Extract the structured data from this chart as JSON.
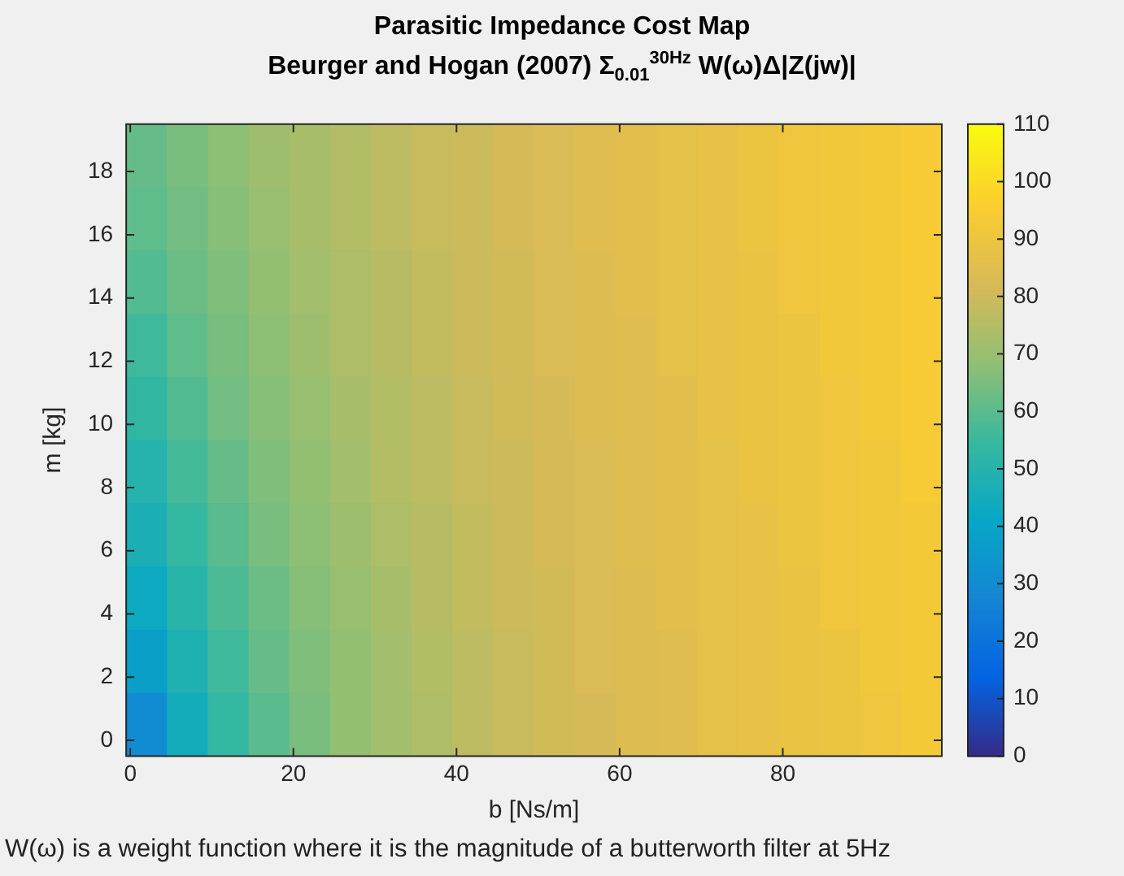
{
  "chart_data": {
    "type": "heatmap",
    "title": "Parasitic Impedance Cost Map",
    "subtitle": "Beurger and Hogan (2007) Σ$_{0.01}$$^{30Hz}$ W(ω)Δ|Z(jw)|",
    "xlabel": "b [Ns/m]",
    "ylabel": "m [kg]",
    "x": [
      2,
      7,
      12,
      17,
      22,
      27,
      32,
      37,
      42,
      47,
      52,
      57,
      62,
      67,
      72,
      77,
      82,
      87,
      92,
      97
    ],
    "y": [
      18.5,
      16.5,
      14.5,
      12.5,
      10.5,
      8.5,
      6.5,
      4.5,
      2.5,
      0.5
    ],
    "cells": [
      [
        62,
        65,
        68,
        71,
        73,
        75,
        77,
        79,
        80,
        82,
        83,
        85,
        86,
        87,
        88,
        90,
        91,
        92,
        93,
        94
      ],
      [
        61,
        64,
        67,
        70,
        73,
        75,
        77,
        79,
        80,
        82,
        83,
        85,
        86,
        87,
        88,
        90,
        91,
        92,
        93,
        94
      ],
      [
        59,
        63,
        66,
        69,
        72,
        74,
        76,
        78,
        80,
        81,
        83,
        84,
        86,
        87,
        88,
        89,
        91,
        92,
        93,
        94
      ],
      [
        56,
        61,
        65,
        68,
        71,
        74,
        76,
        78,
        80,
        81,
        83,
        84,
        85,
        87,
        88,
        89,
        90,
        92,
        93,
        94
      ],
      [
        53,
        59,
        64,
        67,
        70,
        73,
        75,
        77,
        79,
        81,
        82,
        84,
        85,
        86,
        88,
        89,
        90,
        91,
        93,
        94
      ],
      [
        50,
        57,
        62,
        66,
        69,
        72,
        75,
        77,
        79,
        80,
        82,
        83,
        85,
        86,
        87,
        89,
        90,
        91,
        92,
        94
      ],
      [
        47,
        54,
        60,
        65,
        68,
        71,
        74,
        76,
        78,
        80,
        82,
        83,
        85,
        86,
        87,
        88,
        90,
        91,
        92,
        93
      ],
      [
        43,
        51,
        58,
        63,
        67,
        70,
        73,
        76,
        78,
        80,
        81,
        83,
        84,
        86,
        87,
        88,
        89,
        91,
        92,
        93
      ],
      [
        38,
        48,
        56,
        62,
        66,
        69,
        72,
        75,
        77,
        79,
        81,
        83,
        84,
        85,
        87,
        88,
        89,
        90,
        92,
        93
      ],
      [
        30,
        45,
        54,
        60,
        65,
        69,
        72,
        74,
        77,
        79,
        81,
        82,
        84,
        85,
        87,
        88,
        89,
        90,
        91,
        93
      ]
    ],
    "xlim": [
      -0.5,
      99.5
    ],
    "ylim": [
      -0.5,
      19.5
    ],
    "xticks": [
      0,
      20,
      40,
      60,
      80
    ],
    "yticks": [
      0,
      2,
      4,
      6,
      8,
      10,
      12,
      14,
      16,
      18
    ],
    "clim": [
      0,
      110
    ],
    "cticks": [
      0,
      10,
      20,
      30,
      40,
      50,
      60,
      70,
      80,
      90,
      100,
      110
    ],
    "annotations": [
      "W(ω) is a weight function where it is the magnitude of a butterworth filter at 5Hz"
    ]
  }
}
